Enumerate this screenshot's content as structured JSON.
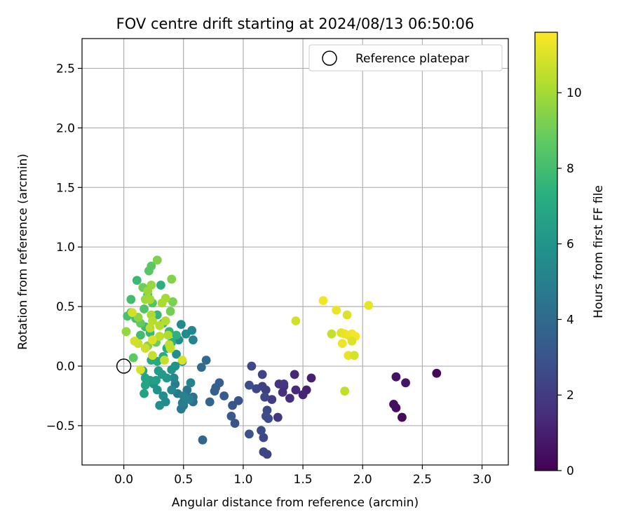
{
  "chart_data": {
    "type": "scatter",
    "title": "FOV centre drift starting at 2024/08/13 06:50:06",
    "xlabel": "Angular distance from reference (arcmin)",
    "ylabel": "Rotation from reference (arcmin)",
    "xlim": [
      -0.35,
      3.22
    ],
    "ylim": [
      -0.83,
      2.75
    ],
    "xticks": [
      0.0,
      0.5,
      1.0,
      1.5,
      2.0,
      2.5,
      3.0
    ],
    "xtick_labels": [
      "0.0",
      "0.5",
      "1.0",
      "1.5",
      "2.0",
      "2.5",
      "3.0"
    ],
    "yticks": [
      -0.5,
      0.0,
      0.5,
      1.0,
      1.5,
      2.0,
      2.5
    ],
    "ytick_labels": [
      "−0.5",
      "0.0",
      "0.5",
      "1.0",
      "1.5",
      "2.0",
      "2.5"
    ],
    "grid": true,
    "legend": {
      "placement": "upper right",
      "entries": [
        "Reference platepar"
      ]
    },
    "reference_point": {
      "x": 0.0,
      "y": 0.0
    },
    "colorbar": {
      "label": "Hours from first FF file",
      "colormap": "viridis",
      "range": [
        0,
        11.6
      ],
      "ticks": [
        0,
        2,
        4,
        6,
        8,
        10
      ],
      "tick_labels": [
        "0",
        "2",
        "4",
        "6",
        "8",
        "10"
      ]
    },
    "points": [
      {
        "x": 2.62,
        "y": -0.06,
        "hours": 0.2
      },
      {
        "x": 2.33,
        "y": -0.43,
        "hours": 0.3
      },
      {
        "x": 2.28,
        "y": -0.35,
        "hours": 0.4
      },
      {
        "x": 2.26,
        "y": -0.32,
        "hours": 0.5
      },
      {
        "x": 2.28,
        "y": -0.09,
        "hours": 0.6
      },
      {
        "x": 2.36,
        "y": -0.14,
        "hours": 0.7
      },
      {
        "x": 1.57,
        "y": -0.1,
        "hours": 1.0
      },
      {
        "x": 1.53,
        "y": -0.2,
        "hours": 1.1
      },
      {
        "x": 1.5,
        "y": -0.24,
        "hours": 1.2
      },
      {
        "x": 1.43,
        "y": -0.07,
        "hours": 1.3
      },
      {
        "x": 1.44,
        "y": -0.2,
        "hours": 1.4
      },
      {
        "x": 1.39,
        "y": -0.27,
        "hours": 1.5
      },
      {
        "x": 1.34,
        "y": -0.17,
        "hours": 1.5
      },
      {
        "x": 1.33,
        "y": -0.22,
        "hours": 1.6
      },
      {
        "x": 1.3,
        "y": -0.15,
        "hours": 1.7
      },
      {
        "x": 1.34,
        "y": -0.15,
        "hours": 1.8
      },
      {
        "x": 1.29,
        "y": -0.43,
        "hours": 1.9
      },
      {
        "x": 1.24,
        "y": -0.28,
        "hours": 2.0
      },
      {
        "x": 1.19,
        "y": -0.2,
        "hours": 2.1
      },
      {
        "x": 1.16,
        "y": -0.17,
        "hours": 2.2
      },
      {
        "x": 1.16,
        "y": -0.07,
        "hours": 2.3
      },
      {
        "x": 1.11,
        "y": -0.19,
        "hours": 2.4
      },
      {
        "x": 1.07,
        "y": 0.0,
        "hours": 2.5
      },
      {
        "x": 1.18,
        "y": -0.26,
        "hours": 2.5
      },
      {
        "x": 1.2,
        "y": -0.37,
        "hours": 2.6
      },
      {
        "x": 1.21,
        "y": -0.44,
        "hours": 2.7
      },
      {
        "x": 1.19,
        "y": -0.42,
        "hours": 2.7
      },
      {
        "x": 1.17,
        "y": -0.6,
        "hours": 2.5
      },
      {
        "x": 1.15,
        "y": -0.54,
        "hours": 2.6
      },
      {
        "x": 1.17,
        "y": -0.72,
        "hours": 2.4
      },
      {
        "x": 1.2,
        "y": -0.74,
        "hours": 2.3
      },
      {
        "x": 1.05,
        "y": -0.16,
        "hours": 2.8
      },
      {
        "x": 1.05,
        "y": -0.57,
        "hours": 2.9
      },
      {
        "x": 0.96,
        "y": -0.29,
        "hours": 3.0
      },
      {
        "x": 0.93,
        "y": -0.48,
        "hours": 3.0
      },
      {
        "x": 0.91,
        "y": -0.33,
        "hours": 3.1
      },
      {
        "x": 0.9,
        "y": -0.42,
        "hours": 3.2
      },
      {
        "x": 0.84,
        "y": -0.25,
        "hours": 3.3
      },
      {
        "x": 0.8,
        "y": -0.14,
        "hours": 3.4
      },
      {
        "x": 0.77,
        "y": -0.18,
        "hours": 3.5
      },
      {
        "x": 0.76,
        "y": -0.21,
        "hours": 3.6
      },
      {
        "x": 0.72,
        "y": -0.3,
        "hours": 3.7
      },
      {
        "x": 0.66,
        "y": -0.62,
        "hours": 3.8
      },
      {
        "x": 0.69,
        "y": 0.05,
        "hours": 4.0
      },
      {
        "x": 0.65,
        "y": -0.01,
        "hours": 4.1
      },
      {
        "x": 0.58,
        "y": -0.3,
        "hours": 4.2
      },
      {
        "x": 0.58,
        "y": -0.26,
        "hours": 4.3
      },
      {
        "x": 0.53,
        "y": -0.2,
        "hours": 4.4
      },
      {
        "x": 0.53,
        "y": -0.26,
        "hours": 4.5
      },
      {
        "x": 0.5,
        "y": -0.33,
        "hours": 4.6
      },
      {
        "x": 0.48,
        "y": -0.36,
        "hours": 4.6
      },
      {
        "x": 0.45,
        "y": -0.23,
        "hours": 4.7
      },
      {
        "x": 0.43,
        "y": -0.15,
        "hours": 4.8
      },
      {
        "x": 0.49,
        "y": -0.31,
        "hours": 4.9
      },
      {
        "x": 0.55,
        "y": -0.28,
        "hours": 5.0
      },
      {
        "x": 0.56,
        "y": -0.14,
        "hours": 5.1
      },
      {
        "x": 0.5,
        "y": -0.25,
        "hours": 5.2
      },
      {
        "x": 0.42,
        "y": -0.1,
        "hours": 5.3
      },
      {
        "x": 0.4,
        "y": -0.2,
        "hours": 5.4
      },
      {
        "x": 0.35,
        "y": -0.3,
        "hours": 5.5
      },
      {
        "x": 0.33,
        "y": -0.25,
        "hours": 5.6
      },
      {
        "x": 0.3,
        "y": -0.33,
        "hours": 5.7
      },
      {
        "x": 0.28,
        "y": -0.2,
        "hours": 5.8
      },
      {
        "x": 0.25,
        "y": -0.15,
        "hours": 5.9
      },
      {
        "x": 0.58,
        "y": 0.22,
        "hours": 5.2
      },
      {
        "x": 0.57,
        "y": 0.3,
        "hours": 5.3
      },
      {
        "x": 0.48,
        "y": 0.35,
        "hours": 5.4
      },
      {
        "x": 0.52,
        "y": 0.27,
        "hours": 5.5
      },
      {
        "x": 0.46,
        "y": 0.22,
        "hours": 5.6
      },
      {
        "x": 0.44,
        "y": 0.1,
        "hours": 5.7
      },
      {
        "x": 0.49,
        "y": 0.04,
        "hours": 5.8
      },
      {
        "x": 0.43,
        "y": 0.0,
        "hours": 5.9
      },
      {
        "x": 0.4,
        "y": -0.03,
        "hours": 6.0
      },
      {
        "x": 0.36,
        "y": -0.1,
        "hours": 6.1
      },
      {
        "x": 0.32,
        "y": -0.07,
        "hours": 6.2
      },
      {
        "x": 0.29,
        "y": -0.04,
        "hours": 6.3
      },
      {
        "x": 0.27,
        "y": -0.12,
        "hours": 6.4
      },
      {
        "x": 0.22,
        "y": -0.12,
        "hours": 6.5
      },
      {
        "x": 0.17,
        "y": -0.23,
        "hours": 6.6
      },
      {
        "x": 0.18,
        "y": -0.1,
        "hours": 6.7
      },
      {
        "x": 0.18,
        "y": -0.16,
        "hours": 6.8
      },
      {
        "x": 0.16,
        "y": -0.04,
        "hours": 6.9
      },
      {
        "x": 0.23,
        "y": 0.05,
        "hours": 7.0
      },
      {
        "x": 0.28,
        "y": 0.04,
        "hours": 7.0
      },
      {
        "x": 0.33,
        "y": 0.08,
        "hours": 7.1
      },
      {
        "x": 0.36,
        "y": 0.15,
        "hours": 7.2
      },
      {
        "x": 0.4,
        "y": 0.2,
        "hours": 7.3
      },
      {
        "x": 0.44,
        "y": 0.26,
        "hours": 7.4
      },
      {
        "x": 0.38,
        "y": 0.29,
        "hours": 7.5
      },
      {
        "x": 0.33,
        "y": 0.36,
        "hours": 7.6
      },
      {
        "x": 0.28,
        "y": 0.43,
        "hours": 7.7
      },
      {
        "x": 0.22,
        "y": 0.28,
        "hours": 7.8
      },
      {
        "x": 0.18,
        "y": 0.33,
        "hours": 7.9
      },
      {
        "x": 0.14,
        "y": 0.26,
        "hours": 8.0
      },
      {
        "x": 0.1,
        "y": 0.4,
        "hours": 8.1
      },
      {
        "x": 0.06,
        "y": 0.45,
        "hours": 8.2
      },
      {
        "x": 0.31,
        "y": 0.68,
        "hours": 7.3
      },
      {
        "x": 0.2,
        "y": 0.6,
        "hours": 7.5
      },
      {
        "x": 0.11,
        "y": 0.72,
        "hours": 7.8
      },
      {
        "x": 0.06,
        "y": 0.56,
        "hours": 8.0
      },
      {
        "x": 0.03,
        "y": 0.42,
        "hours": 8.2
      },
      {
        "x": 0.17,
        "y": 0.48,
        "hours": 8.3
      },
      {
        "x": 0.24,
        "y": 0.53,
        "hours": 8.4
      },
      {
        "x": 0.21,
        "y": 0.8,
        "hours": 8.5
      },
      {
        "x": 0.23,
        "y": 0.84,
        "hours": 8.6
      },
      {
        "x": 0.08,
        "y": 0.07,
        "hours": 8.7
      },
      {
        "x": 0.14,
        "y": 0.36,
        "hours": 8.8
      },
      {
        "x": 0.27,
        "y": 0.2,
        "hours": 8.9
      },
      {
        "x": 0.16,
        "y": 0.66,
        "hours": 9.0
      },
      {
        "x": 0.39,
        "y": 0.46,
        "hours": 9.1
      },
      {
        "x": 0.41,
        "y": 0.54,
        "hours": 9.2
      },
      {
        "x": 0.28,
        "y": 0.89,
        "hours": 9.3
      },
      {
        "x": 0.4,
        "y": 0.73,
        "hours": 9.4
      },
      {
        "x": 0.2,
        "y": 0.17,
        "hours": 9.5
      },
      {
        "x": 0.12,
        "y": 0.41,
        "hours": 9.6
      },
      {
        "x": 0.02,
        "y": 0.29,
        "hours": 9.7
      },
      {
        "x": 0.23,
        "y": 0.68,
        "hours": 9.8
      },
      {
        "x": 0.2,
        "y": 0.63,
        "hours": 9.8
      },
      {
        "x": 0.18,
        "y": 0.56,
        "hours": 9.9
      },
      {
        "x": 0.22,
        "y": 0.56,
        "hours": 10.0
      },
      {
        "x": 0.35,
        "y": 0.57,
        "hours": 10.0
      },
      {
        "x": 0.32,
        "y": 0.53,
        "hours": 10.1
      },
      {
        "x": 0.23,
        "y": 0.43,
        "hours": 10.1
      },
      {
        "x": 0.35,
        "y": 0.38,
        "hours": 10.2
      },
      {
        "x": 0.37,
        "y": 0.26,
        "hours": 10.2
      },
      {
        "x": 0.3,
        "y": 0.34,
        "hours": 10.3
      },
      {
        "x": 0.24,
        "y": 0.38,
        "hours": 10.3
      },
      {
        "x": 0.22,
        "y": 0.32,
        "hours": 10.4
      },
      {
        "x": 0.3,
        "y": 0.25,
        "hours": 10.4
      },
      {
        "x": 0.38,
        "y": 0.18,
        "hours": 10.5
      },
      {
        "x": 0.39,
        "y": 0.15,
        "hours": 10.5
      },
      {
        "x": 0.34,
        "y": 0.05,
        "hours": 10.6
      },
      {
        "x": 0.24,
        "y": 0.09,
        "hours": 10.6
      },
      {
        "x": 0.18,
        "y": 0.15,
        "hours": 10.7
      },
      {
        "x": 0.12,
        "y": 0.19,
        "hours": 10.7
      },
      {
        "x": 0.09,
        "y": 0.21,
        "hours": 10.8
      },
      {
        "x": 0.07,
        "y": 0.45,
        "hours": 10.8
      },
      {
        "x": 0.14,
        "y": -0.03,
        "hours": 10.9
      },
      {
        "x": 0.49,
        "y": 0.05,
        "hours": 10.9
      },
      {
        "x": 0.24,
        "y": 0.22,
        "hours": 11.0
      },
      {
        "x": 1.44,
        "y": 0.38,
        "hours": 10.8
      },
      {
        "x": 1.67,
        "y": 0.55,
        "hours": 11.4
      },
      {
        "x": 2.05,
        "y": 0.51,
        "hours": 11.2
      },
      {
        "x": 1.78,
        "y": 0.47,
        "hours": 11.3
      },
      {
        "x": 1.87,
        "y": 0.43,
        "hours": 11.0
      },
      {
        "x": 1.74,
        "y": 0.27,
        "hours": 10.6
      },
      {
        "x": 1.82,
        "y": 0.28,
        "hours": 11.1
      },
      {
        "x": 1.85,
        "y": 0.27,
        "hours": 11.2
      },
      {
        "x": 1.88,
        "y": 0.26,
        "hours": 11.3
      },
      {
        "x": 1.91,
        "y": 0.27,
        "hours": 11.4
      },
      {
        "x": 1.94,
        "y": 0.25,
        "hours": 11.5
      },
      {
        "x": 1.91,
        "y": 0.21,
        "hours": 11.0
      },
      {
        "x": 1.83,
        "y": 0.19,
        "hours": 11.3
      },
      {
        "x": 1.88,
        "y": 0.09,
        "hours": 11.2
      },
      {
        "x": 1.93,
        "y": 0.09,
        "hours": 10.9
      },
      {
        "x": 1.85,
        "y": -0.21,
        "hours": 10.5
      }
    ]
  }
}
